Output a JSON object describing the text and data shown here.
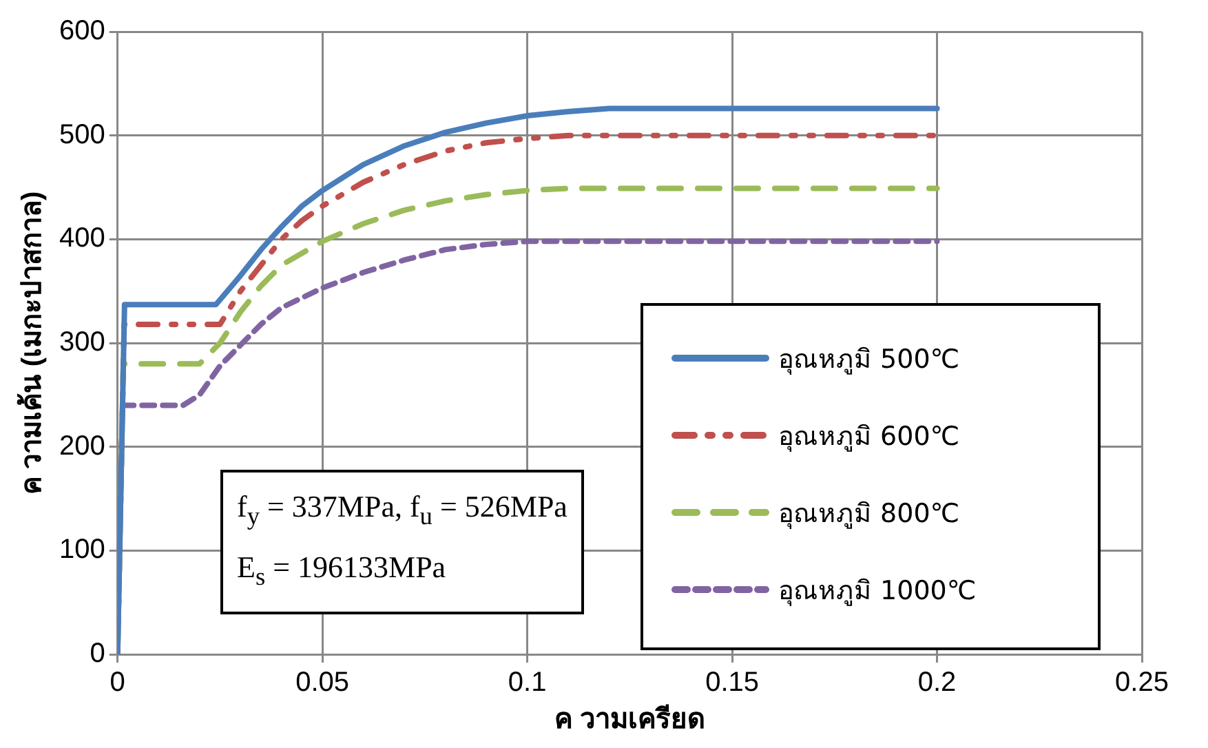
{
  "chart_data": {
    "type": "line",
    "xlabel": "ค วามเครียด",
    "ylabel": "ค วามเค้น (เมกะปาสกาล)",
    "xlim": [
      0,
      0.25
    ],
    "xticks": [
      0,
      0.05,
      0.1,
      0.15,
      0.2,
      0.25
    ],
    "ylim": [
      0,
      600
    ],
    "yticks": [
      0,
      100,
      200,
      300,
      400,
      500,
      600
    ],
    "grid": true,
    "legend": "right",
    "marker": "none",
    "annotations": [
      "f$_{y}$ = 337MPa, f$_{u}$ = 526MPa",
      "E$_{s}$ = 196133MPa"
    ],
    "series": [
      {
        "name": "อุณหภูมิ 500℃",
        "color": "#4a7ebb",
        "line_style": "solid",
        "x": [
          0,
          0.0017,
          0.024,
          0.03,
          0.035,
          0.04,
          0.045,
          0.05,
          0.06,
          0.07,
          0.08,
          0.09,
          0.1,
          0.11,
          0.12,
          0.2
        ],
        "values": [
          0,
          337,
          337,
          365,
          390,
          412,
          432,
          447,
          472,
          490,
          503,
          512,
          519,
          523,
          526,
          526
        ]
      },
      {
        "name": "อุณหภูมิ 600℃",
        "color": "#c0504d",
        "line_style": "dashed",
        "x": [
          0,
          0.0016,
          0.025,
          0.03,
          0.035,
          0.04,
          0.045,
          0.05,
          0.06,
          0.07,
          0.08,
          0.09,
          0.1,
          0.11,
          0.2
        ],
        "values": [
          0,
          318,
          318,
          350,
          375,
          400,
          418,
          432,
          455,
          472,
          485,
          493,
          497,
          500,
          500
        ]
      },
      {
        "name": "อุณหภูมิ 800℃",
        "color": "#9bbb59",
        "line_style": "dashed",
        "x": [
          0,
          0.0014,
          0.02,
          0.025,
          0.03,
          0.035,
          0.04,
          0.05,
          0.06,
          0.07,
          0.08,
          0.09,
          0.1,
          0.11,
          0.2
        ],
        "values": [
          0,
          280,
          280,
          300,
          330,
          355,
          375,
          398,
          415,
          428,
          437,
          443,
          447,
          449,
          449
        ]
      },
      {
        "name": "อุณหภูมิ 1000℃",
        "color": "#8064a2",
        "line_style": "dashed",
        "x": [
          0,
          0.0012,
          0.016,
          0.02,
          0.025,
          0.03,
          0.035,
          0.04,
          0.05,
          0.06,
          0.07,
          0.08,
          0.09,
          0.1,
          0.2
        ],
        "values": [
          0,
          240,
          240,
          250,
          278,
          298,
          318,
          334,
          353,
          368,
          380,
          390,
          395,
          398,
          398
        ]
      }
    ]
  }
}
